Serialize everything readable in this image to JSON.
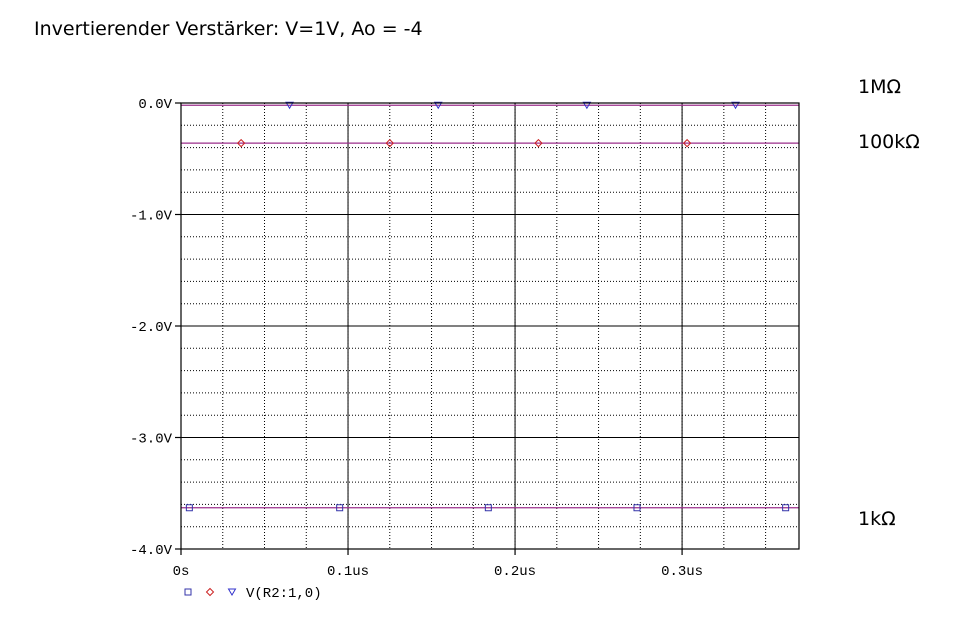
{
  "header": {
    "title": "Invertierender Verstärker: V=1V, Ao = -4"
  },
  "annotations": [
    {
      "text": "1MΩ"
    },
    {
      "text": "100kΩ"
    },
    {
      "text": "1kΩ"
    }
  ],
  "colors": {
    "series_1k": "#3333aa",
    "series_100k": "#cc2222",
    "series_1M": "#3333cc",
    "trace_line": "#9b2f8c",
    "grid": "#000000"
  },
  "chart_data": {
    "type": "line",
    "title": "Invertierender Verstärker: V=1V, Ao = -4",
    "xlabel": "",
    "ylabel": "",
    "xlim": [
      0,
      0.37
    ],
    "ylim": [
      -4.0,
      0.0
    ],
    "x_unit": "us",
    "y_unit": "V",
    "grid": true,
    "x_ticks": [
      {
        "value": 0.0,
        "label": "0s"
      },
      {
        "value": 0.1,
        "label": "0.1us"
      },
      {
        "value": 0.2,
        "label": "0.2us"
      },
      {
        "value": 0.3,
        "label": "0.3us"
      }
    ],
    "y_ticks": [
      {
        "value": 0.0,
        "label": "0.0V"
      },
      {
        "value": -1.0,
        "label": "-1.0V"
      },
      {
        "value": -2.0,
        "label": "-2.0V"
      },
      {
        "value": -3.0,
        "label": "-3.0V"
      },
      {
        "value": -4.0,
        "label": "-4.0V"
      }
    ],
    "legend": {
      "placement": "bottom-left",
      "label": "V(R2:1,0)",
      "markers": [
        "square",
        "diamond",
        "triangle-down"
      ]
    },
    "series": [
      {
        "marker": "square",
        "color_key": "series_1k",
        "x": [
          0.005,
          0.095,
          0.184,
          0.273,
          0.362
        ],
        "y": [
          -3.63,
          -3.63,
          -3.63,
          -3.63,
          -3.63
        ],
        "line_x": [
          0,
          0.37
        ],
        "line_y": [
          -3.63,
          -3.63
        ]
      },
      {
        "marker": "diamond",
        "color_key": "series_100k",
        "x": [
          0.036,
          0.125,
          0.214,
          0.303
        ],
        "y": [
          -0.36,
          -0.36,
          -0.36,
          -0.36
        ],
        "line_x": [
          0,
          0.37
        ],
        "line_y": [
          -0.36,
          -0.36
        ]
      },
      {
        "marker": "triangle-down",
        "color_key": "series_1M",
        "x": [
          0.065,
          0.154,
          0.243,
          0.332
        ],
        "y": [
          -0.02,
          -0.02,
          -0.02,
          -0.02
        ],
        "line_x": [
          0,
          0.37
        ],
        "line_y": [
          -0.02,
          -0.02
        ]
      }
    ]
  }
}
